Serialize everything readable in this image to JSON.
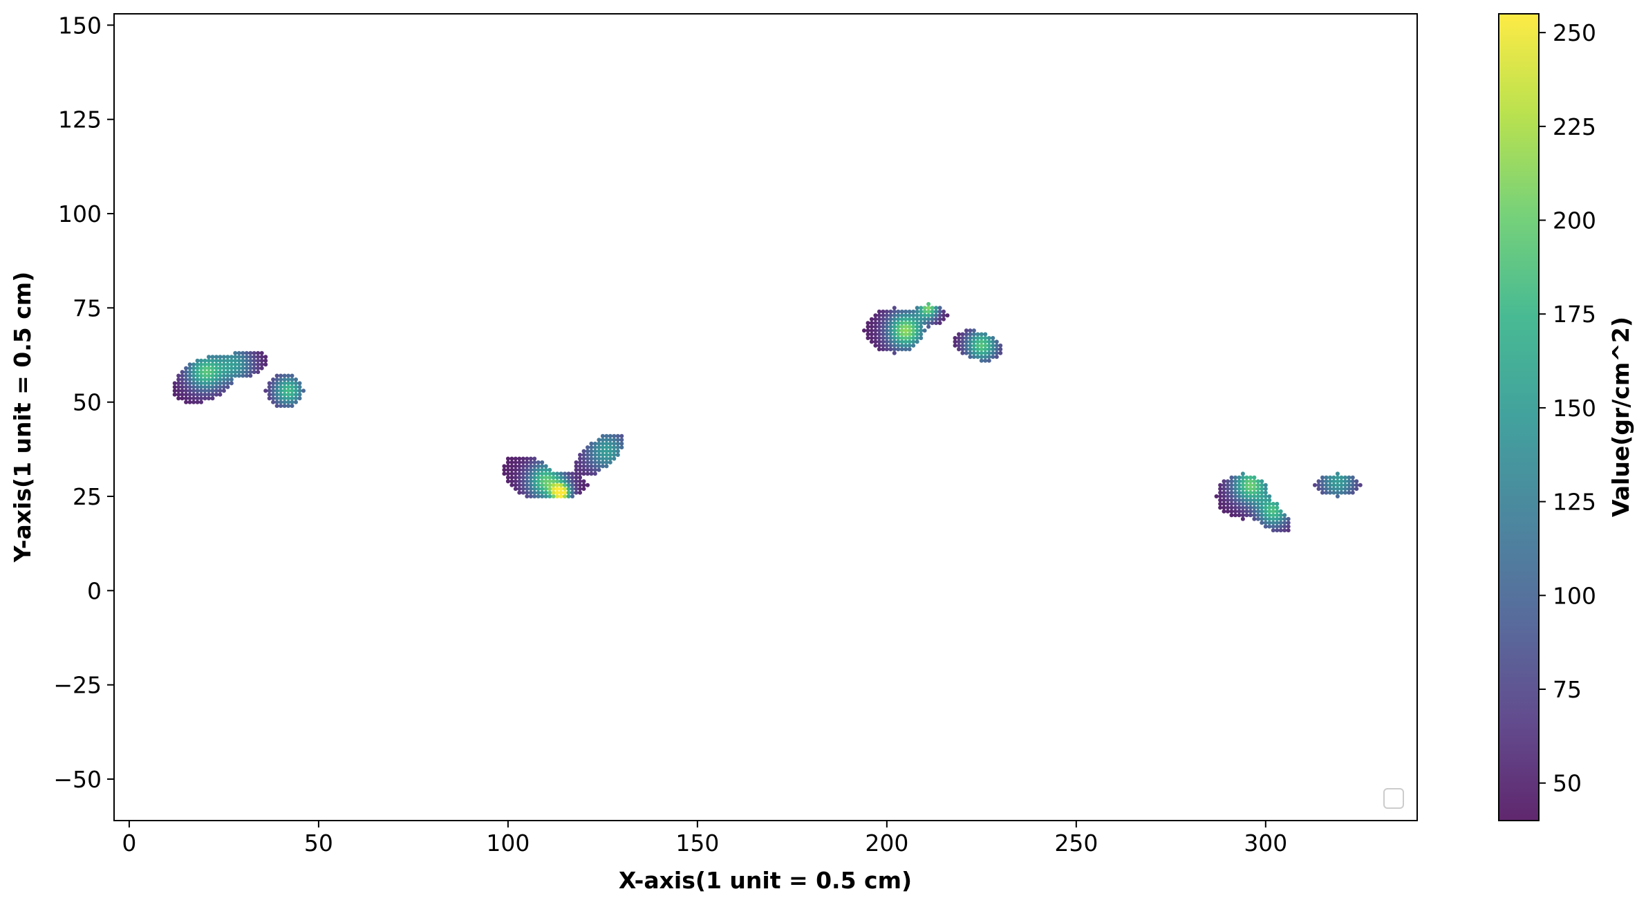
{
  "chart_data": {
    "type": "scatter",
    "title": "",
    "xlabel": "X-axis(1 unit = 0.5 cm)",
    "ylabel": "Y-axis(1 unit = 0.5 cm)",
    "xlim": [
      -4,
      340
    ],
    "ylim": [
      -61,
      153
    ],
    "xticks": [
      0,
      50,
      100,
      150,
      200,
      250,
      300
    ],
    "yticks": [
      -50,
      -25,
      0,
      25,
      50,
      75,
      100,
      125,
      150
    ],
    "xtick_labels": [
      "0",
      "50",
      "100",
      "150",
      "200",
      "250",
      "300"
    ],
    "ytick_labels": [
      "−50",
      "−25",
      "0",
      "25",
      "50",
      "75",
      "100",
      "125",
      "150"
    ],
    "grid": false,
    "legend": {
      "placement": "lower right",
      "entries": []
    },
    "colorbar": {
      "label": "Value(gr/cm^2)",
      "colormap": "viridis",
      "range": [
        40,
        255
      ],
      "ticks": [
        50,
        75,
        100,
        125,
        150,
        175,
        200,
        225,
        250
      ],
      "tick_labels": [
        "50",
        "75",
        "100",
        "125",
        "150",
        "175",
        "200",
        "225",
        "250"
      ]
    },
    "point_spacing": 1,
    "series": [
      {
        "footprints": [
          {
            "center": [
              29,
              57
            ],
            "blobs": [
              {
                "x": 20,
                "y": 56,
                "rx": 9,
                "ry": 5.5,
                "angle": 25
              },
              {
                "x": 30,
                "y": 60,
                "rx": 7,
                "ry": 3.5,
                "angle": 10
              },
              {
                "x": 41,
                "y": 53,
                "rx": 5,
                "ry": 4.5,
                "angle": 0
              }
            ],
            "hotspots": [
              {
                "x": 20,
                "y": 58,
                "value": 185,
                "r": 3.5
              },
              {
                "x": 28,
                "y": 60,
                "value": 140,
                "r": 3.5
              },
              {
                "x": 42,
                "y": 53,
                "value": 180,
                "r": 3
              }
            ]
          },
          {
            "center": [
              115,
              31
            ],
            "blobs": [
              {
                "x": 106,
                "y": 30,
                "rx": 8,
                "ry": 5,
                "angle": -30
              },
              {
                "x": 114,
                "y": 28,
                "rx": 7,
                "ry": 3.5,
                "angle": 0
              },
              {
                "x": 124,
                "y": 36,
                "rx": 8,
                "ry": 3.8,
                "angle": 40
              }
            ],
            "hotspots": [
              {
                "x": 110,
                "y": 29,
                "value": 195,
                "r": 3.5
              },
              {
                "x": 114,
                "y": 26,
                "value": 245,
                "r": 1.8
              },
              {
                "x": 126,
                "y": 37,
                "value": 150,
                "r": 4
              }
            ]
          },
          {
            "center": [
              212,
              69
            ],
            "blobs": [
              {
                "x": 202,
                "y": 69,
                "rx": 8,
                "ry": 6,
                "angle": 0
              },
              {
                "x": 211,
                "y": 73,
                "rx": 5,
                "ry": 3,
                "angle": 0
              },
              {
                "x": 224,
                "y": 65,
                "rx": 7,
                "ry": 3.8,
                "angle": -15
              }
            ],
            "hotspots": [
              {
                "x": 205,
                "y": 69,
                "value": 215,
                "r": 3.5
              },
              {
                "x": 211,
                "y": 75,
                "value": 200,
                "r": 2
              },
              {
                "x": 225,
                "y": 65,
                "value": 190,
                "r": 3
              }
            ]
          },
          {
            "center": [
              305,
              25
            ],
            "blobs": [
              {
                "x": 294,
                "y": 25,
                "rx": 7,
                "ry": 6,
                "angle": 0
              },
              {
                "x": 300,
                "y": 21,
                "rx": 8,
                "ry": 3.5,
                "angle": -40
              },
              {
                "x": 319,
                "y": 28,
                "rx": 6,
                "ry": 3,
                "angle": 0
              }
            ],
            "hotspots": [
              {
                "x": 296,
                "y": 28,
                "value": 200,
                "r": 3.5
              },
              {
                "x": 302,
                "y": 21,
                "value": 180,
                "r": 3
              },
              {
                "x": 319,
                "y": 29,
                "value": 150,
                "r": 3.5
              }
            ]
          }
        ]
      }
    ]
  }
}
